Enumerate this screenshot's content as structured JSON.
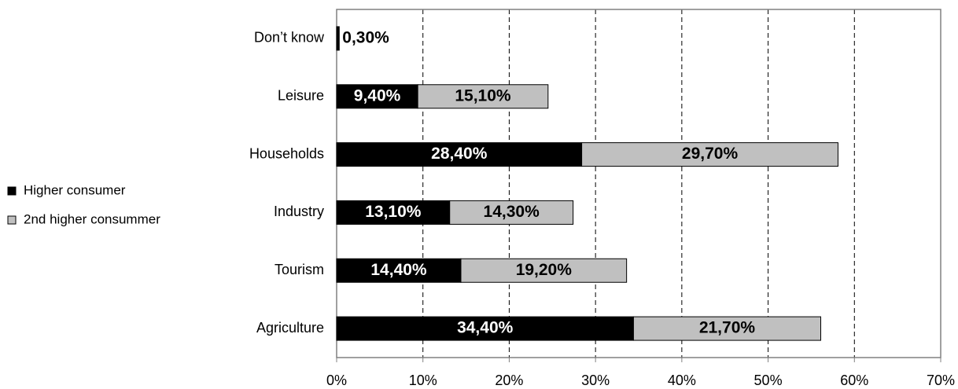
{
  "chart_data": {
    "type": "stacked_barh",
    "categories": [
      "Don’t know",
      "Leisure",
      "Households",
      "Industry",
      "Tourism",
      "Agriculture"
    ],
    "series": [
      {
        "name": "Higher consumer",
        "color": "#000000",
        "values": [
          0.3,
          9.4,
          28.4,
          13.1,
          14.4,
          34.4
        ],
        "value_labels": [
          "0,30%",
          "9,40%",
          "28,40%",
          "13,10%",
          "14,40%",
          "34,40%"
        ]
      },
      {
        "name": "2nd higher consummer",
        "color": "#c0c0c0",
        "values": [
          null,
          15.1,
          29.7,
          14.3,
          19.2,
          21.7
        ],
        "value_labels": [
          null,
          "15,10%",
          "29,70%",
          "14,30%",
          "19,20%",
          "21,70%"
        ]
      }
    ],
    "xlim": [
      0,
      70
    ],
    "xticks": [
      {
        "value": 0,
        "label": "0%"
      },
      {
        "value": 10,
        "label": "10%"
      },
      {
        "value": 20,
        "label": "20%"
      },
      {
        "value": 30,
        "label": "30%"
      },
      {
        "value": 40,
        "label": "40%"
      },
      {
        "value": 50,
        "label": "50%"
      },
      {
        "value": 60,
        "label": "60%"
      },
      {
        "value": 70,
        "label": "70%"
      }
    ],
    "grid": true,
    "legend": "left"
  }
}
